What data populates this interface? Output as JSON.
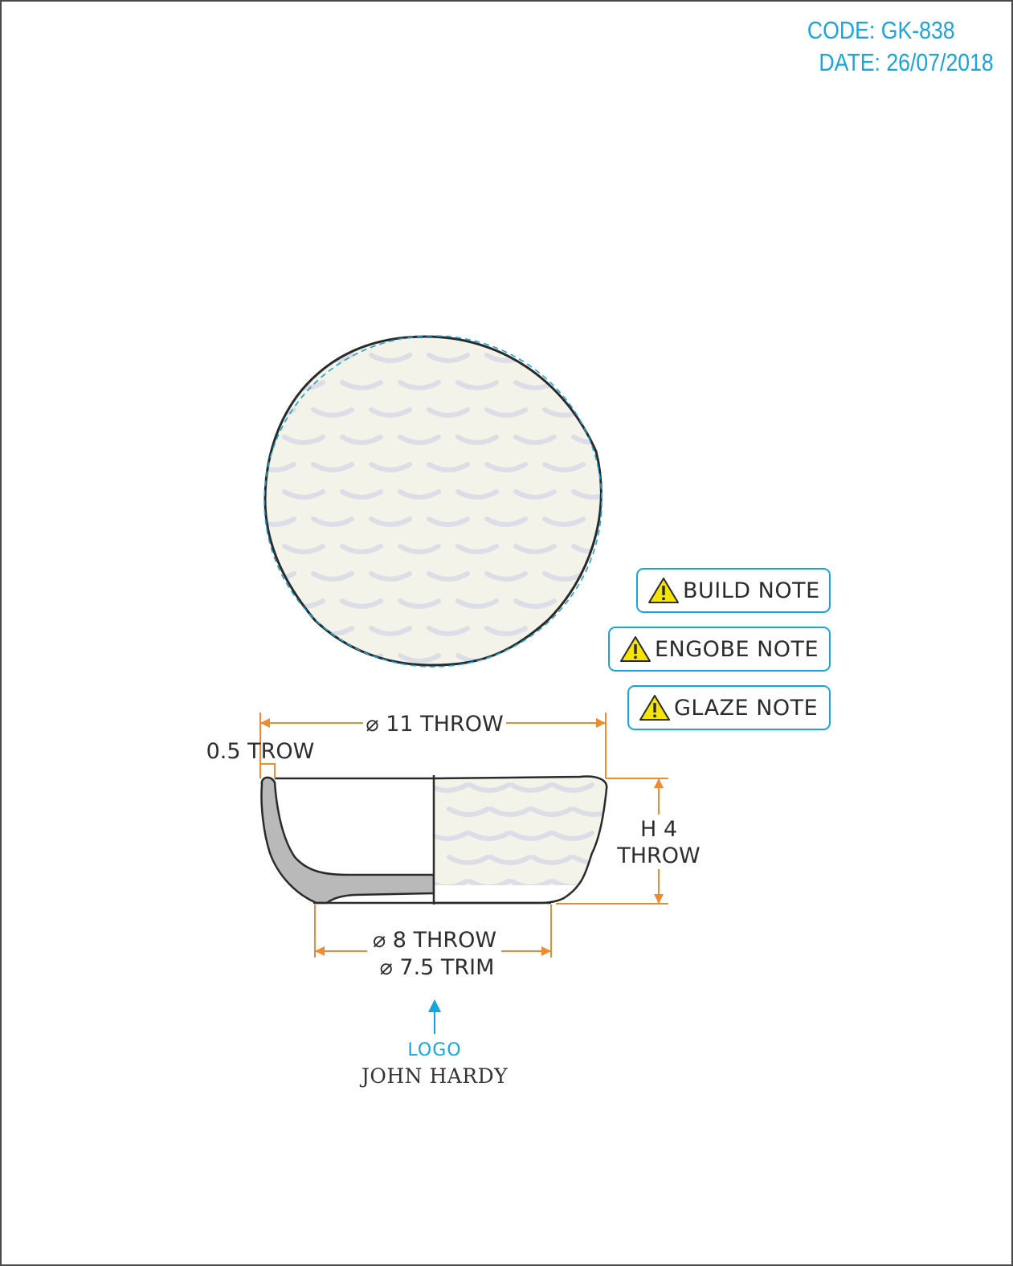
{
  "header": {
    "code": "CODE: GK-838",
    "date": "DATE: 26/07/2018"
  },
  "notes": [
    {
      "label": "BUILD NOTE"
    },
    {
      "label": "ENGOBE NOTE"
    },
    {
      "label": "GLAZE NOTE"
    }
  ],
  "dimensions": {
    "rim_diameter": "⌀ 11 THROW",
    "wall_thickness": "0.5 TROW",
    "height_line1": "H 4",
    "height_line2": "THROW",
    "foot_throw": "⌀ 8 THROW",
    "foot_trim": "⌀ 7.5 TRIM"
  },
  "logo": {
    "label": "LOGO",
    "brand": "JOHN HARDY"
  },
  "colors": {
    "accent_blue": "#1aa4dc",
    "dimension_orange": "#f08a2c",
    "glaze_cream": "#f3f3ea",
    "clay_grey": "#b9b9b9",
    "warning_yellow": "#f5e400"
  }
}
